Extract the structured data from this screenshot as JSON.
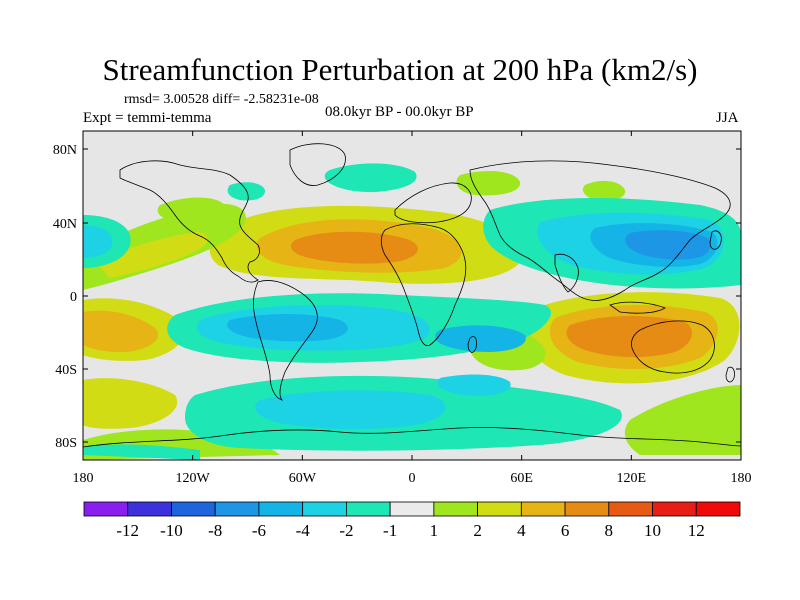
{
  "title": "Streamfunction Perturbation at 200 hPa (km2/s)",
  "stats": "rmsd= 3.00528 diff= -2.58231e-08",
  "expt": "Expt = temmi-temma",
  "period": "08.0kyr BP - 00.0kyr BP",
  "season": "JJA",
  "map": {
    "lat_ticks": [
      "80N",
      "40N",
      "0",
      "40S",
      "80S"
    ],
    "lon_ticks": [
      "180",
      "120W",
      "60W",
      "0",
      "60E",
      "120E",
      "180"
    ],
    "background_color": "#e6e6e6"
  },
  "colorbar": {
    "labels": [
      "-12",
      "-10",
      "-8",
      "-6",
      "-4",
      "-2",
      "-1",
      "1",
      "2",
      "4",
      "6",
      "8",
      "10",
      "12"
    ],
    "colors": [
      "#8a1ef0",
      "#3c32dc",
      "#1e64dc",
      "#1e96e6",
      "#14b4e6",
      "#1ed2e6",
      "#1ee6b4",
      "#ebebeb",
      "#a0e61e",
      "#d2dc14",
      "#e6b414",
      "#e68c14",
      "#e65a14",
      "#e61e14",
      "#f00a0a"
    ]
  }
}
